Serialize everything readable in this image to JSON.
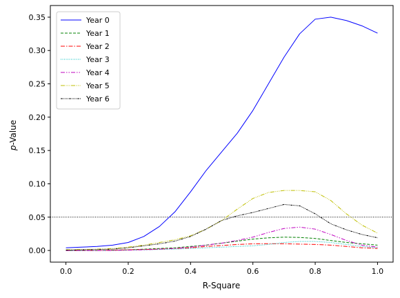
{
  "chart_data": {
    "type": "line",
    "xlabel": "R-Square",
    "ylabel_italic": "p",
    "ylabel_rest": "-Value",
    "xlim": [
      -0.05,
      1.05
    ],
    "ylim": [
      -0.0175,
      0.3675
    ],
    "xticks": [
      0.0,
      0.2,
      0.4,
      0.6,
      0.8,
      1.0
    ],
    "xtick_labels": [
      "0.0",
      "0.2",
      "0.4",
      "0.6",
      "0.8",
      "1.0"
    ],
    "yticks": [
      0.0,
      0.05,
      0.1,
      0.15,
      0.2,
      0.25,
      0.3,
      0.35
    ],
    "ytick_labels": [
      "0.00",
      "0.05",
      "0.10",
      "0.15",
      "0.20",
      "0.25",
      "0.30",
      "0.35"
    ],
    "reference_line": {
      "y": 0.05,
      "color": "#000000",
      "style": "dotted"
    },
    "legend_position": "upper-left",
    "x": [
      0.0,
      0.05,
      0.1,
      0.15,
      0.2,
      0.25,
      0.3,
      0.35,
      0.4,
      0.45,
      0.5,
      0.55,
      0.6,
      0.65,
      0.7,
      0.75,
      0.8,
      0.85,
      0.9,
      0.95,
      1.0
    ],
    "series": [
      {
        "name": "Year 0",
        "color": "#0000ff",
        "dash": "",
        "values": [
          0.004,
          0.005,
          0.006,
          0.008,
          0.012,
          0.021,
          0.036,
          0.058,
          0.088,
          0.12,
          0.148,
          0.176,
          0.21,
          0.25,
          0.29,
          0.325,
          0.347,
          0.35,
          0.345,
          0.337,
          0.326
        ]
      },
      {
        "name": "Year 1",
        "color": "#008000",
        "dash": "4,2",
        "values": [
          0.0,
          0.0,
          0.0,
          0.0005,
          0.001,
          0.002,
          0.003,
          0.004,
          0.006,
          0.008,
          0.011,
          0.014,
          0.017,
          0.019,
          0.02,
          0.0195,
          0.018,
          0.015,
          0.012,
          0.01,
          0.008
        ]
      },
      {
        "name": "Year 2",
        "color": "#ff0000",
        "dash": "6,2,1.5,2",
        "values": [
          0.0,
          0.0,
          0.0,
          0.0005,
          0.001,
          0.0015,
          0.002,
          0.003,
          0.004,
          0.006,
          0.0075,
          0.009,
          0.01,
          0.0102,
          0.01,
          0.0095,
          0.009,
          0.008,
          0.006,
          0.004,
          0.003
        ]
      },
      {
        "name": "Year 3",
        "color": "#00bfbf",
        "dash": "1,1.5",
        "values": [
          0.0,
          0.0,
          0.0,
          0.0,
          0.0005,
          0.001,
          0.0015,
          0.002,
          0.003,
          0.004,
          0.005,
          0.006,
          0.007,
          0.009,
          0.012,
          0.0135,
          0.0135,
          0.012,
          0.009,
          0.006,
          0.004
        ]
      },
      {
        "name": "Year 4",
        "color": "#bf00bf",
        "dash": "6,2,1.5,2,1.5,2",
        "values": [
          0.0,
          0.0,
          0.0,
          0.0,
          0.0005,
          0.001,
          0.002,
          0.003,
          0.005,
          0.008,
          0.011,
          0.015,
          0.02,
          0.027,
          0.033,
          0.035,
          0.032,
          0.024,
          0.015,
          0.008,
          0.005
        ]
      },
      {
        "name": "Year 5",
        "color": "#bfbf00",
        "dash": "6,1.5,1,1.5,1,1.5,1,1.5",
        "values": [
          0.001,
          0.0015,
          0.002,
          0.003,
          0.005,
          0.008,
          0.012,
          0.016,
          0.022,
          0.032,
          0.045,
          0.062,
          0.078,
          0.087,
          0.09,
          0.09,
          0.088,
          0.075,
          0.055,
          0.038,
          0.026
        ]
      },
      {
        "name": "Year 6",
        "color": "#000000",
        "dash": "3,1,1,1,1,1,1,1,1,1",
        "values": [
          0.0005,
          0.001,
          0.0015,
          0.002,
          0.004,
          0.007,
          0.01,
          0.014,
          0.021,
          0.032,
          0.045,
          0.052,
          0.057,
          0.063,
          0.069,
          0.067,
          0.055,
          0.04,
          0.031,
          0.024,
          0.019
        ]
      }
    ]
  }
}
